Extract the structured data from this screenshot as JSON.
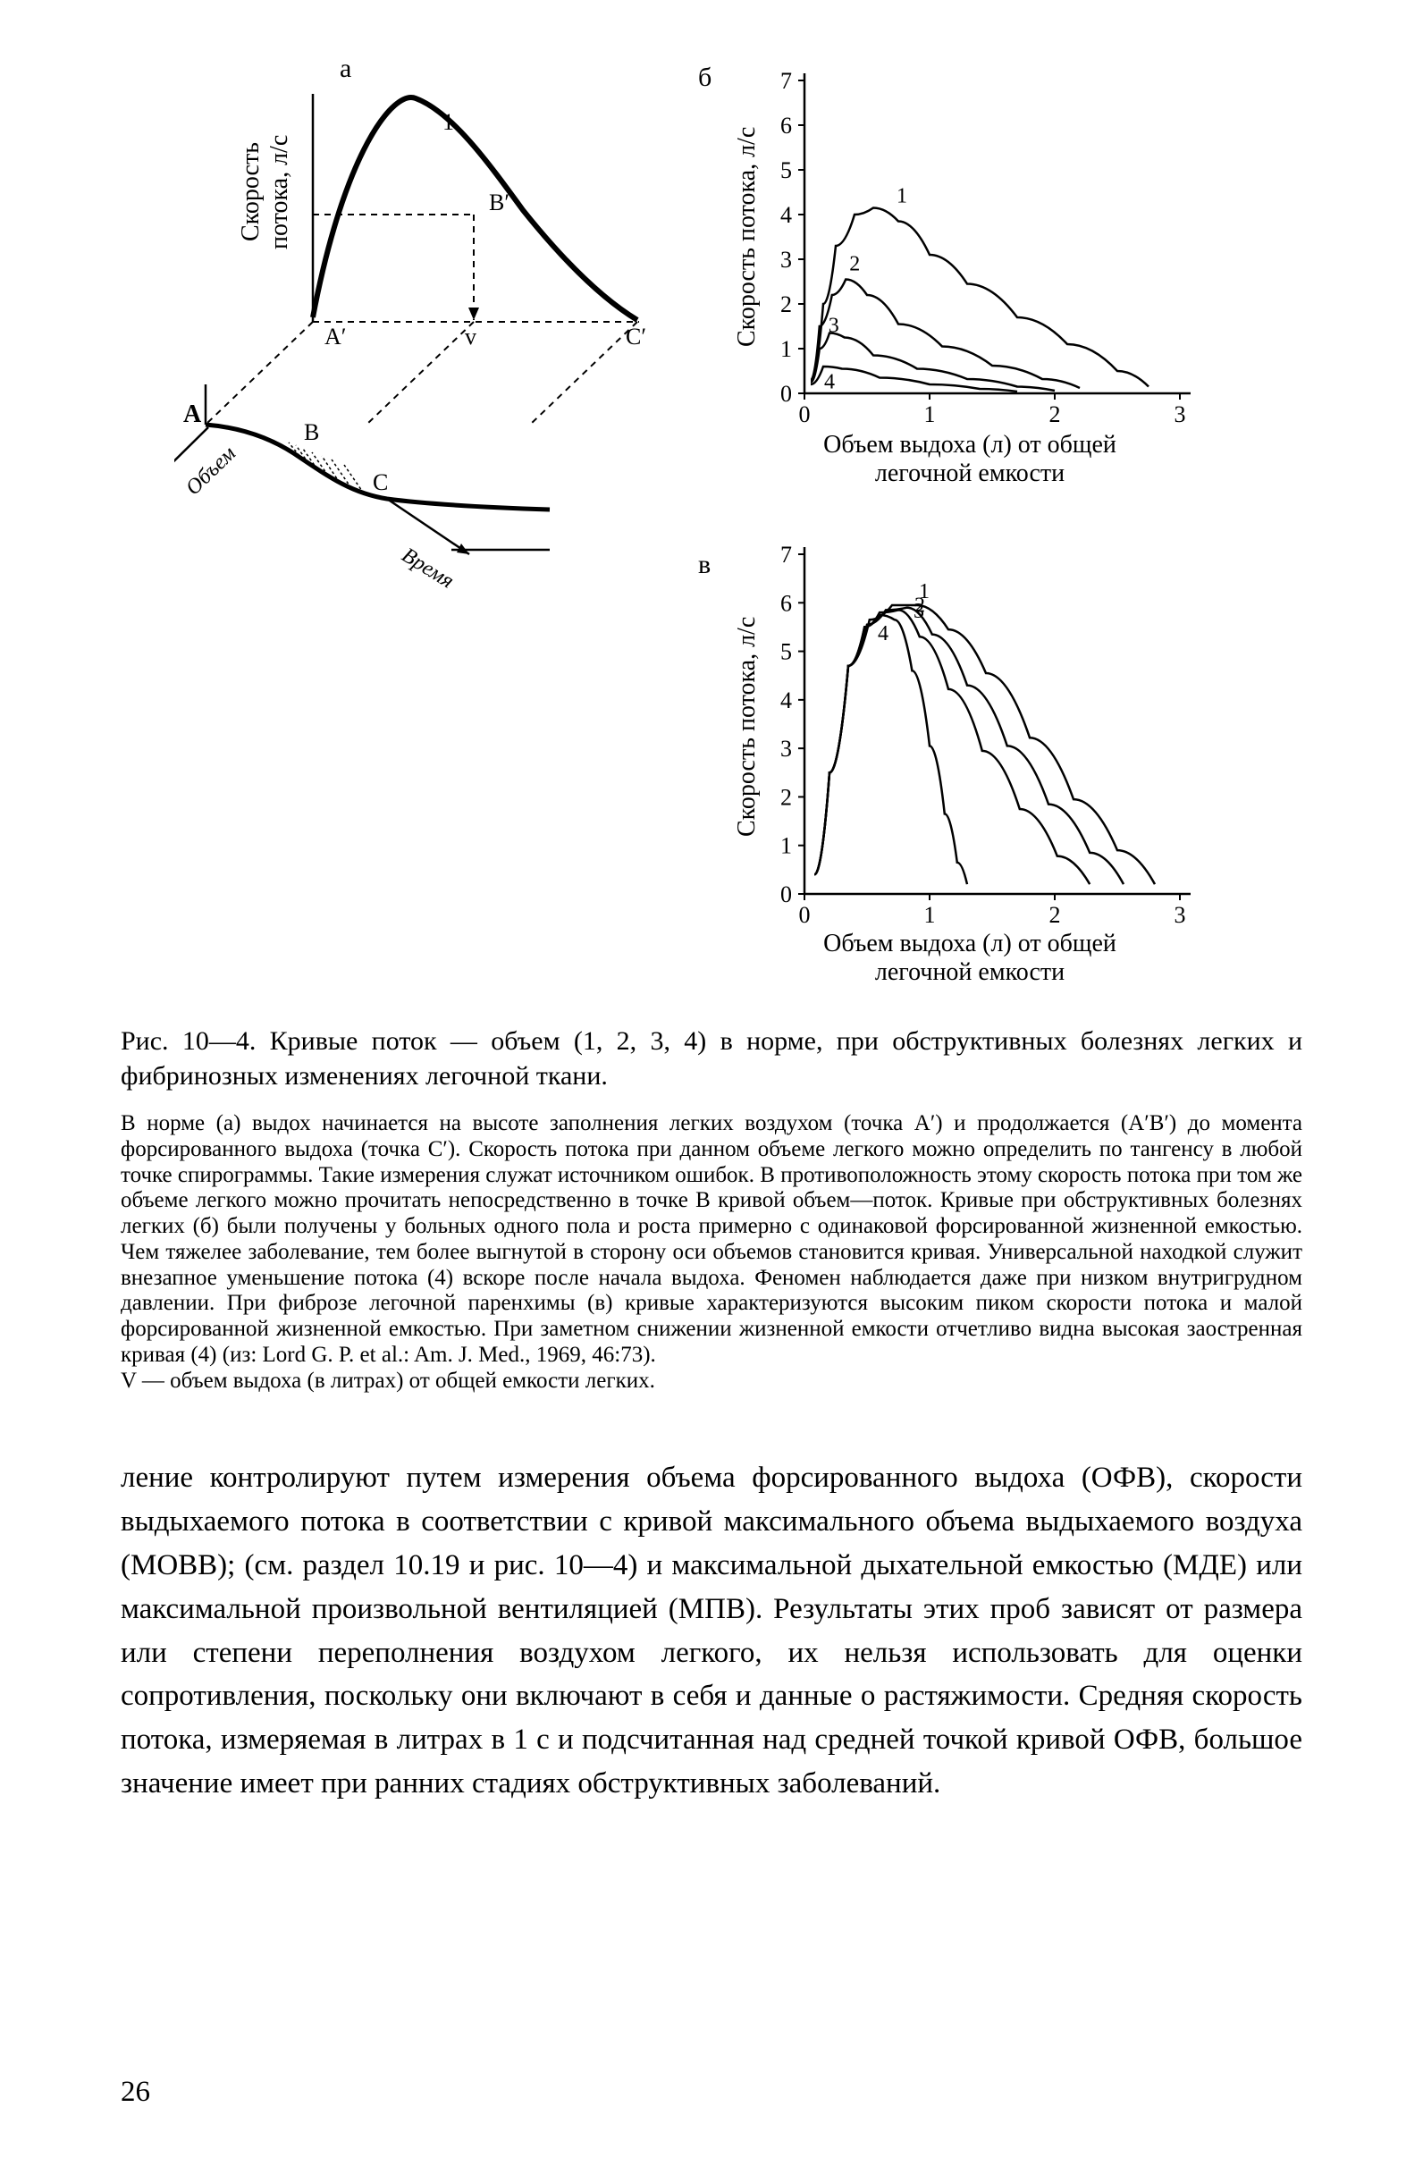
{
  "figure": {
    "panel_a": {
      "label": "а",
      "y_axis_label": "Скорость\nпотока, л/с",
      "labels3d": {
        "volume": "Объем",
        "time": "Время"
      },
      "curve_number": "1",
      "points2d": {
        "Aprime": "A′",
        "Bprime": "B′",
        "Cprime": "C′",
        "v": "v"
      },
      "points3d": {
        "A": "A",
        "B": "B",
        "C": "C"
      },
      "curve_color": "#000000",
      "line_width": 4,
      "dashed_color": "#000000",
      "background": "#ffffff"
    },
    "panel_b": {
      "label": "б",
      "type": "line",
      "y_axis_label": "Скорость потока, л/с",
      "x_axis_label": "Объем выдоха (л) от общей\nлегочной емкости",
      "xlim": [
        0,
        3
      ],
      "ylim": [
        0,
        7
      ],
      "ytick_step": 1,
      "xtick_step": 1,
      "line_color": "#000000",
      "line_width": 2.5,
      "grid": false,
      "series": {
        "1": {
          "label": "1",
          "points": [
            [
              0.05,
              0.3
            ],
            [
              0.15,
              2.0
            ],
            [
              0.25,
              3.3
            ],
            [
              0.4,
              4.0
            ],
            [
              0.55,
              4.15
            ],
            [
              0.75,
              3.85
            ],
            [
              1.0,
              3.1
            ],
            [
              1.3,
              2.45
            ],
            [
              1.7,
              1.7
            ],
            [
              2.1,
              1.1
            ],
            [
              2.5,
              0.5
            ],
            [
              2.75,
              0.15
            ]
          ]
        },
        "2": {
          "label": "2",
          "points": [
            [
              0.05,
              0.3
            ],
            [
              0.12,
              1.5
            ],
            [
              0.22,
              2.2
            ],
            [
              0.33,
              2.55
            ],
            [
              0.5,
              2.2
            ],
            [
              0.75,
              1.55
            ],
            [
              1.1,
              1.05
            ],
            [
              1.5,
              0.62
            ],
            [
              1.9,
              0.32
            ],
            [
              2.2,
              0.12
            ]
          ]
        },
        "3": {
          "label": "3",
          "points": [
            [
              0.05,
              0.25
            ],
            [
              0.12,
              1.0
            ],
            [
              0.2,
              1.35
            ],
            [
              0.32,
              1.25
            ],
            [
              0.55,
              0.85
            ],
            [
              0.9,
              0.55
            ],
            [
              1.3,
              0.32
            ],
            [
              1.7,
              0.15
            ],
            [
              2.0,
              0.06
            ]
          ]
        },
        "4": {
          "label": "4",
          "points": [
            [
              0.05,
              0.2
            ],
            [
              0.15,
              0.6
            ],
            [
              0.3,
              0.55
            ],
            [
              0.6,
              0.35
            ],
            [
              1.0,
              0.2
            ],
            [
              1.4,
              0.1
            ],
            [
              1.7,
              0.04
            ]
          ]
        }
      }
    },
    "panel_c": {
      "label": "в",
      "type": "line",
      "y_axis_label": "Скорость потока, л/с",
      "x_axis_label": "Объем выдоха (л) от общей\nлегочной емкости",
      "xlim": [
        0,
        3
      ],
      "ylim": [
        0,
        7
      ],
      "ytick_step": 1,
      "xtick_step": 1,
      "line_color": "#000000",
      "line_width": 2.5,
      "grid": false,
      "series": {
        "1": {
          "label": "1",
          "points": [
            [
              0.08,
              0.4
            ],
            [
              0.2,
              2.5
            ],
            [
              0.35,
              4.7
            ],
            [
              0.52,
              5.65
            ],
            [
              0.7,
              5.95
            ],
            [
              0.9,
              5.95
            ],
            [
              1.15,
              5.45
            ],
            [
              1.45,
              4.55
            ],
            [
              1.8,
              3.22
            ],
            [
              2.15,
              1.95
            ],
            [
              2.5,
              0.9
            ],
            [
              2.8,
              0.2
            ]
          ]
        },
        "2": {
          "label": "2",
          "points": [
            [
              0.08,
              0.4
            ],
            [
              0.2,
              2.5
            ],
            [
              0.35,
              4.7
            ],
            [
              0.5,
              5.55
            ],
            [
              0.65,
              5.85
            ],
            [
              0.82,
              5.9
            ],
            [
              1.02,
              5.35
            ],
            [
              1.3,
              4.3
            ],
            [
              1.62,
              3.05
            ],
            [
              1.95,
              1.85
            ],
            [
              2.28,
              0.85
            ],
            [
              2.55,
              0.2
            ]
          ]
        },
        "3": {
          "label": "3",
          "points": [
            [
              0.08,
              0.4
            ],
            [
              0.2,
              2.5
            ],
            [
              0.35,
              4.7
            ],
            [
              0.48,
              5.5
            ],
            [
              0.6,
              5.8
            ],
            [
              0.75,
              5.85
            ],
            [
              0.92,
              5.3
            ],
            [
              1.15,
              4.22
            ],
            [
              1.42,
              2.95
            ],
            [
              1.72,
              1.75
            ],
            [
              2.02,
              0.78
            ],
            [
              2.28,
              0.2
            ]
          ]
        },
        "4": {
          "label": "4",
          "points": [
            [
              0.08,
              0.4
            ],
            [
              0.2,
              2.5
            ],
            [
              0.35,
              4.7
            ],
            [
              0.48,
              5.5
            ],
            [
              0.6,
              5.75
            ],
            [
              0.72,
              5.65
            ],
            [
              0.86,
              4.6
            ],
            [
              1.0,
              3.05
            ],
            [
              1.12,
              1.65
            ],
            [
              1.22,
              0.65
            ],
            [
              1.3,
              0.2
            ]
          ]
        }
      }
    }
  },
  "caption_title": "Рис. 10—4. Кривые поток — объем (1, 2, 3, 4) в норме, при обструктивных болезнях легких и фибринозных изменениях легочной ткани.",
  "caption_body": "В норме (а) выдох начинается на высоте заполнения легких воздухом (точка A′) и продолжается (A′B′) до момента форсированного выдоха (точка C′). Скорость потока при данном объеме легкого можно определить по тангенсу в любой точке спирограммы. Такие измерения служат источником ошибок. В противоположность этому скорость потока при том же объеме легкого можно прочитать непосредственно в точке B кривой объем—поток. Кривые при обструктивных болезнях легких (б) были получены у больных одного пола и роста примерно с одинаковой форсированной жизненной емкостью. Чем тяжелее заболевание, тем более выгнутой в сторону оси объемов становится кривая. Универсальной находкой служит внезапное уменьшение потока (4) вскоре после начала выдоха. Феномен наблюдается даже при низком внутригрудном давлении. При фиброзе легочной паренхимы (в) кривые характеризуются высоким пиком скорости потока и малой форсированной жизненной емкостью. При заметном снижении жизненной емкости отчетливо видна высокая заостренная кривая (4) (из: Lord G. P. et al.: Am. J. Med., 1969, 46:73).\nV — объем выдоха (в литрах) от общей емкости легких.",
  "body_text": "ление контролируют путем измерения объема форсированного выдоха (ОФВ), скорости выдыхаемого потока в соответствии с кривой максимального объема выдыхаемого воздуха (МОВВ); (см. раздел 10.19 и рис. 10—4) и максимальной дыхательной емкостью (МДЕ) или максимальной произвольной вентиляцией (МПВ). Результаты этих проб зависят от размера или степени переполнения воздухом легкого, их нельзя использовать для оценки сопротивления, поскольку они включают в себя и данные о растяжимости. Средняя скорость потока, измеряемая в литрах в 1 с и подсчитанная над средней точкой кривой ОФВ, большое значение имеет при ранних стадиях обструктивных заболеваний.",
  "page_number": "26",
  "colors": {
    "text": "#000000",
    "background": "#ffffff",
    "stroke": "#000000"
  },
  "typography": {
    "body_fontsize": 33,
    "caption_title_fontsize": 30,
    "caption_body_fontsize": 25,
    "axis_label_fontsize": 28,
    "tick_fontsize": 26,
    "font_family": "Times New Roman"
  }
}
